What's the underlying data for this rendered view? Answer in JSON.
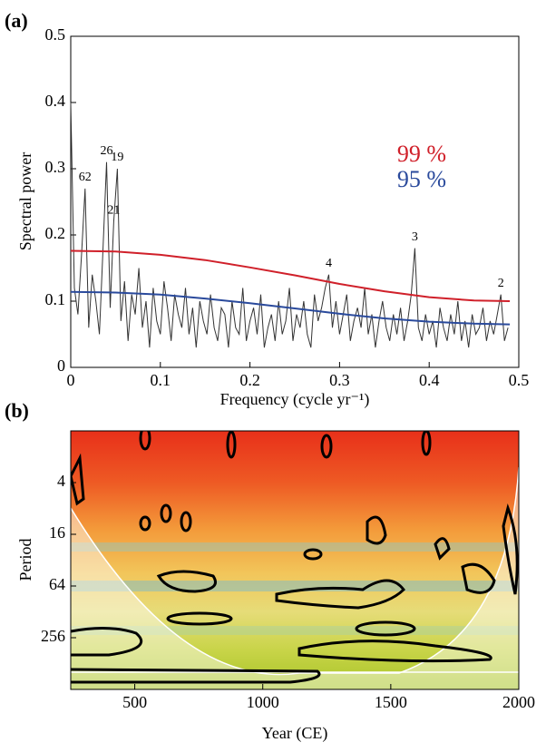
{
  "chart_data": [
    {
      "type": "line",
      "panel_label": "(a)",
      "xlabel": "Frequency (cycle yr⁻¹)",
      "ylabel": "Spectral power",
      "xlim": [
        0,
        0.5
      ],
      "xticks": [
        0,
        0.1,
        0.2,
        0.3,
        0.4,
        0.5
      ],
      "ylim": [
        0,
        0.5
      ],
      "yticks": [
        0,
        0.1,
        0.2,
        0.3,
        0.4,
        0.5
      ],
      "color": "#333333",
      "x": [
        0,
        0.004,
        0.008,
        0.012,
        0.016,
        0.02,
        0.024,
        0.028,
        0.032,
        0.036,
        0.04,
        0.044,
        0.048,
        0.052,
        0.056,
        0.06,
        0.064,
        0.068,
        0.072,
        0.076,
        0.08,
        0.084,
        0.088,
        0.092,
        0.096,
        0.1,
        0.104,
        0.108,
        0.112,
        0.116,
        0.12,
        0.124,
        0.128,
        0.132,
        0.136,
        0.14,
        0.144,
        0.148,
        0.152,
        0.156,
        0.16,
        0.164,
        0.168,
        0.172,
        0.176,
        0.18,
        0.184,
        0.188,
        0.192,
        0.196,
        0.2,
        0.204,
        0.208,
        0.212,
        0.216,
        0.22,
        0.224,
        0.228,
        0.232,
        0.236,
        0.24,
        0.244,
        0.248,
        0.252,
        0.256,
        0.26,
        0.264,
        0.268,
        0.272,
        0.276,
        0.28,
        0.284,
        0.288,
        0.292,
        0.296,
        0.3,
        0.304,
        0.308,
        0.312,
        0.316,
        0.32,
        0.324,
        0.328,
        0.332,
        0.336,
        0.34,
        0.344,
        0.348,
        0.352,
        0.356,
        0.36,
        0.364,
        0.368,
        0.372,
        0.376,
        0.38,
        0.384,
        0.388,
        0.392,
        0.396,
        0.4,
        0.404,
        0.408,
        0.412,
        0.416,
        0.42,
        0.424,
        0.428,
        0.432,
        0.436,
        0.44,
        0.444,
        0.448,
        0.452,
        0.456,
        0.46,
        0.464,
        0.468,
        0.472,
        0.476,
        0.48,
        0.484,
        0.488
      ],
      "values": [
        0.4,
        0.12,
        0.08,
        0.17,
        0.27,
        0.06,
        0.14,
        0.1,
        0.05,
        0.18,
        0.31,
        0.09,
        0.22,
        0.3,
        0.07,
        0.13,
        0.04,
        0.11,
        0.08,
        0.15,
        0.06,
        0.1,
        0.03,
        0.12,
        0.07,
        0.05,
        0.13,
        0.09,
        0.04,
        0.11,
        0.08,
        0.06,
        0.12,
        0.05,
        0.09,
        0.03,
        0.1,
        0.07,
        0.05,
        0.11,
        0.06,
        0.04,
        0.09,
        0.08,
        0.03,
        0.1,
        0.06,
        0.05,
        0.12,
        0.04,
        0.07,
        0.09,
        0.05,
        0.11,
        0.03,
        0.06,
        0.08,
        0.04,
        0.1,
        0.05,
        0.07,
        0.12,
        0.04,
        0.08,
        0.06,
        0.1,
        0.05,
        0.03,
        0.11,
        0.07,
        0.09,
        0.12,
        0.14,
        0.06,
        0.1,
        0.05,
        0.08,
        0.11,
        0.04,
        0.07,
        0.09,
        0.06,
        0.12,
        0.05,
        0.08,
        0.03,
        0.07,
        0.1,
        0.06,
        0.04,
        0.08,
        0.05,
        0.09,
        0.04,
        0.07,
        0.11,
        0.18,
        0.06,
        0.04,
        0.08,
        0.05,
        0.07,
        0.03,
        0.09,
        0.06,
        0.04,
        0.08,
        0.05,
        0.1,
        0.04,
        0.07,
        0.03,
        0.08,
        0.05,
        0.06,
        0.09,
        0.04,
        0.07,
        0.05,
        0.08,
        0.11,
        0.04,
        0.06
      ],
      "series": [
        {
          "name": "99 %",
          "color": "#d0202a",
          "x": [
            0,
            0.05,
            0.1,
            0.15,
            0.2,
            0.25,
            0.3,
            0.35,
            0.4,
            0.45,
            0.49
          ],
          "values": [
            0.176,
            0.175,
            0.17,
            0.162,
            0.151,
            0.139,
            0.126,
            0.115,
            0.106,
            0.101,
            0.1
          ]
        },
        {
          "name": "95 %",
          "color": "#2a4a9c",
          "x": [
            0,
            0.05,
            0.1,
            0.15,
            0.2,
            0.25,
            0.3,
            0.35,
            0.4,
            0.45,
            0.49
          ],
          "values": [
            0.114,
            0.113,
            0.11,
            0.104,
            0.097,
            0.089,
            0.081,
            0.074,
            0.069,
            0.066,
            0.065
          ]
        }
      ],
      "annotations": [
        {
          "text": "62",
          "x": 0.016
        },
        {
          "text": "26",
          "x": 0.04
        },
        {
          "text": "21",
          "x": 0.048
        },
        {
          "text": "19",
          "x": 0.052
        },
        {
          "text": "4",
          "x": 0.288
        },
        {
          "text": "3",
          "x": 0.384
        },
        {
          "text": "2",
          "x": 0.48
        }
      ]
    },
    {
      "type": "wavelet",
      "panel_label": "(b)",
      "xlabel": "Year (CE)",
      "ylabel": "Period",
      "xlim": [
        250,
        2000
      ],
      "xticks": [
        500,
        1000,
        1500,
        2000
      ],
      "ylim": [
        1,
        1024
      ],
      "yticks": [
        4,
        16,
        64,
        256
      ],
      "log_scale": true
    }
  ]
}
